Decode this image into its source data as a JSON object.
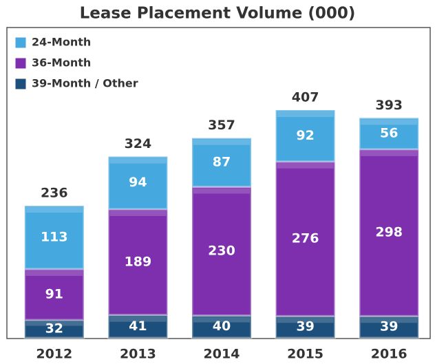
{
  "chart_data": {
    "type": "stacked_bar",
    "title": "Lease Placement Volume (000)",
    "categories": [
      "2012",
      "2013",
      "2014",
      "2015",
      "2016"
    ],
    "series": [
      {
        "name": "39-Month / Other",
        "color": "#1d4f7c",
        "values": [
          32,
          41,
          40,
          39,
          39
        ]
      },
      {
        "name": "36-Month",
        "color": "#7d2fae",
        "values": [
          91,
          189,
          230,
          276,
          298
        ]
      },
      {
        "name": "24-Month",
        "color": "#45a8df",
        "values": [
          113,
          94,
          87,
          92,
          56
        ]
      }
    ],
    "totals": [
      236,
      324,
      357,
      407,
      393
    ],
    "legend": "top-left"
  }
}
